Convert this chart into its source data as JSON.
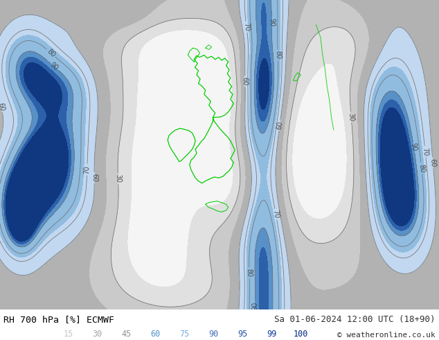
{
  "title_left": "RH 700 hPa [%] ECMWF",
  "title_right": "Sa 01-06-2024 12:00 UTC (18+90)",
  "copyright": "© weatheronline.co.uk",
  "colorbar_values": [
    15,
    30,
    45,
    60,
    75,
    90,
    95,
    99,
    100
  ],
  "bg_color": "#ffffff",
  "map_bg": "#e8e8e8",
  "figsize": [
    6.34,
    4.9
  ],
  "dpi": 100,
  "fill_levels": [
    0,
    15,
    30,
    45,
    60,
    75,
    90,
    95,
    99,
    101
  ],
  "fill_colors": [
    "#f5f5f5",
    "#e2e2e2",
    "#cccccc",
    "#b5b5b5",
    "#c8dff0",
    "#93c0e0",
    "#5a94c8",
    "#2e65a8",
    "#1040888"
  ],
  "contour_levels": [
    30,
    60,
    70,
    80,
    90
  ],
  "contour_color": "#707070",
  "outline_color": "#00cc00",
  "cb_label_colors": [
    "#c8c8c8",
    "#a0a0a0",
    "#888888",
    "#60a0d0",
    "#80b8e0",
    "#4878c0",
    "#2455a8",
    "#1040a8",
    "#0028888"
  ]
}
